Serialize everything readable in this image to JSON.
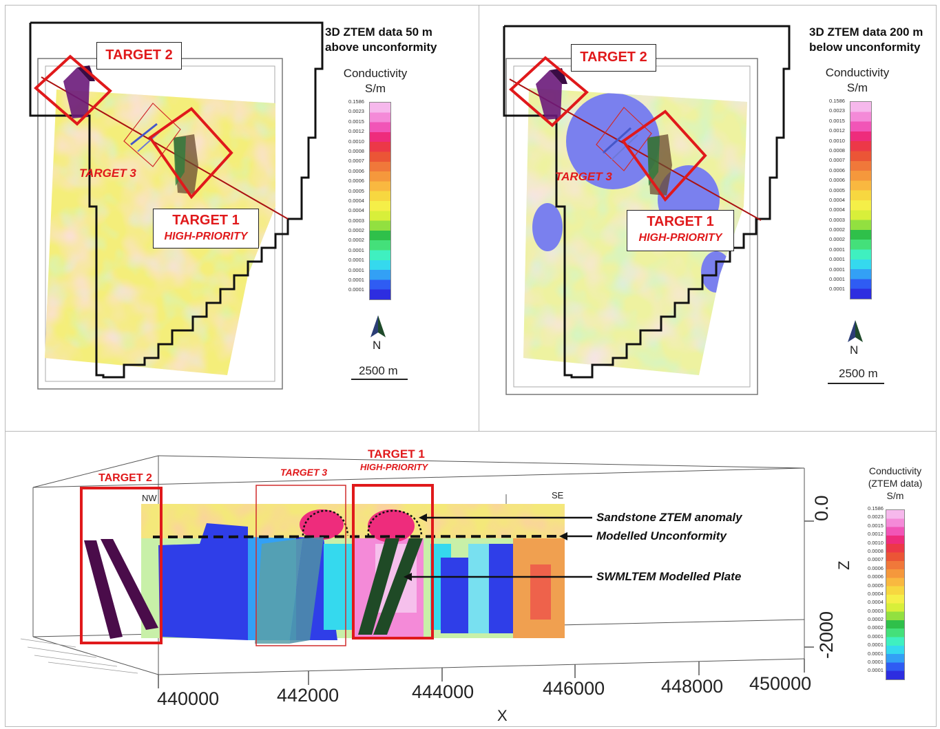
{
  "colors": {
    "target_red": "#e0191b",
    "palette": [
      "#2d2de0",
      "#2f5cf3",
      "#33a0f5",
      "#35d9ee",
      "#3ff0c0",
      "#44e07a",
      "#2fc04a",
      "#92e040",
      "#d8ef3a",
      "#f5ef48",
      "#f7d740",
      "#f9b840",
      "#f5983c",
      "#f0783a",
      "#eb5536",
      "#ec3848",
      "#ee2c7c",
      "#f155b7",
      "#f48ad8",
      "#f6b8ec"
    ]
  },
  "panel_tl": {
    "title": "3D ZTEM data 50 m above unconformity",
    "title_line1": "3D ZTEM data 50 m",
    "title_line2": "above unconformity",
    "legend_title_line1": "Conductivity",
    "legend_title_line2": "S/m",
    "ticks": [
      "0.1586",
      "0.0023",
      "0.0015",
      "0.0012",
      "0.0010",
      "0.0008",
      "0.0007",
      "0.0006",
      "0.0006",
      "0.0005",
      "0.0004",
      "0.0004",
      "0.0003",
      "0.0002",
      "0.0002",
      "0.0001",
      "0.0001",
      "0.0001",
      "0.0001",
      "0.0001"
    ],
    "north_label": "N",
    "scale_label": "2500 m",
    "target1_label": "TARGET 1",
    "target1_sub": "HIGH-PRIORITY",
    "target2_label": "TARGET 2",
    "target3_label": "TARGET 3"
  },
  "panel_tr": {
    "title_line1": "3D ZTEM data 200 m",
    "title_line2": "below unconformity",
    "legend_title_line1": "Conductivity",
    "legend_title_line2": "S/m",
    "ticks": [
      "0.1586",
      "0.0023",
      "0.0015",
      "0.0012",
      "0.0010",
      "0.0008",
      "0.0007",
      "0.0006",
      "0.0006",
      "0.0005",
      "0.0004",
      "0.0004",
      "0.0003",
      "0.0002",
      "0.0002",
      "0.0001",
      "0.0001",
      "0.0001",
      "0.0001",
      "0.0001"
    ],
    "north_label": "N",
    "scale_label": "2500 m",
    "target1_label": "TARGET 1",
    "target1_sub": "HIGH-PRIORITY",
    "target2_label": "TARGET 2",
    "target3_label": "TARGET 3"
  },
  "panel_bottom": {
    "target2_label": "TARGET 2",
    "target3_label": "TARGET 3",
    "target1_label": "TARGET 1",
    "target1_sub": "HIGH-PRIORITY",
    "nw_label": "NW",
    "se_label": "SE",
    "annot_sandstone": "Sandstone ZTEM anomaly",
    "annot_unconformity": "Modelled Unconformity",
    "annot_plate": "SWMLTEM Modelled Plate",
    "legend_line1": "Conductivity",
    "legend_line2": "(ZTEM data)",
    "legend_line3": "S/m",
    "ticks": [
      "0.1586",
      "0.0023",
      "0.0015",
      "0.0012",
      "0.0010",
      "0.0008",
      "0.0007",
      "0.0006",
      "0.0006",
      "0.0005",
      "0.0004",
      "0.0004",
      "0.0003",
      "0.0002",
      "0.0002",
      "0.0001",
      "0.0001",
      "0.0001",
      "0.0001",
      "0.0001"
    ],
    "x_ticks": [
      "440000",
      "442000",
      "444000",
      "446000",
      "448000",
      "450000"
    ],
    "x_axis_label": "X",
    "z_ticks": [
      "0.0",
      "-2000"
    ],
    "z_axis_label": "Z"
  }
}
